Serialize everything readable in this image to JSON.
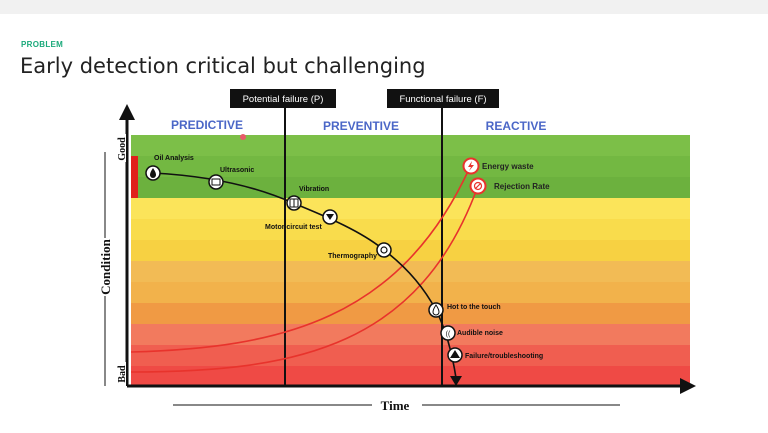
{
  "header": {
    "kicker": "PROBLEM",
    "title": "Early detection critical but challenging"
  },
  "diagram": {
    "markers": {
      "p_label": "Potential failure (P)",
      "f_label": "Functional failure (F)"
    },
    "zones": {
      "predictive": "PREDICTIVE",
      "preventive": "PREVENTIVE",
      "reactive": "REACTIVE"
    },
    "axes": {
      "y_label": "Condition",
      "y_good": "Good",
      "y_bad": "Bad",
      "x_label": "Time"
    },
    "points": {
      "oil": "Oil Analysis",
      "ultrasonic": "Ultrasonic",
      "vibration": "Vibration",
      "motor": "Motor circuit test",
      "thermo": "Thermography",
      "hot": "Hot to the touch",
      "noise": "Audible noise",
      "failure": "Failure/troubleshooting"
    },
    "outcomes": {
      "energy": "Energy waste",
      "rejection": "Rejection Rate"
    },
    "colors": {
      "band_green_1": "#7cbf48",
      "band_green_2": "#6cb13e",
      "band_yellow": "#f9dc4c",
      "band_orange": "#f2b24b",
      "band_red": "#ef4a45",
      "zone_label": "#4b67c7",
      "red_curve": "#e8332c",
      "kicker": "#1aa97a"
    }
  }
}
